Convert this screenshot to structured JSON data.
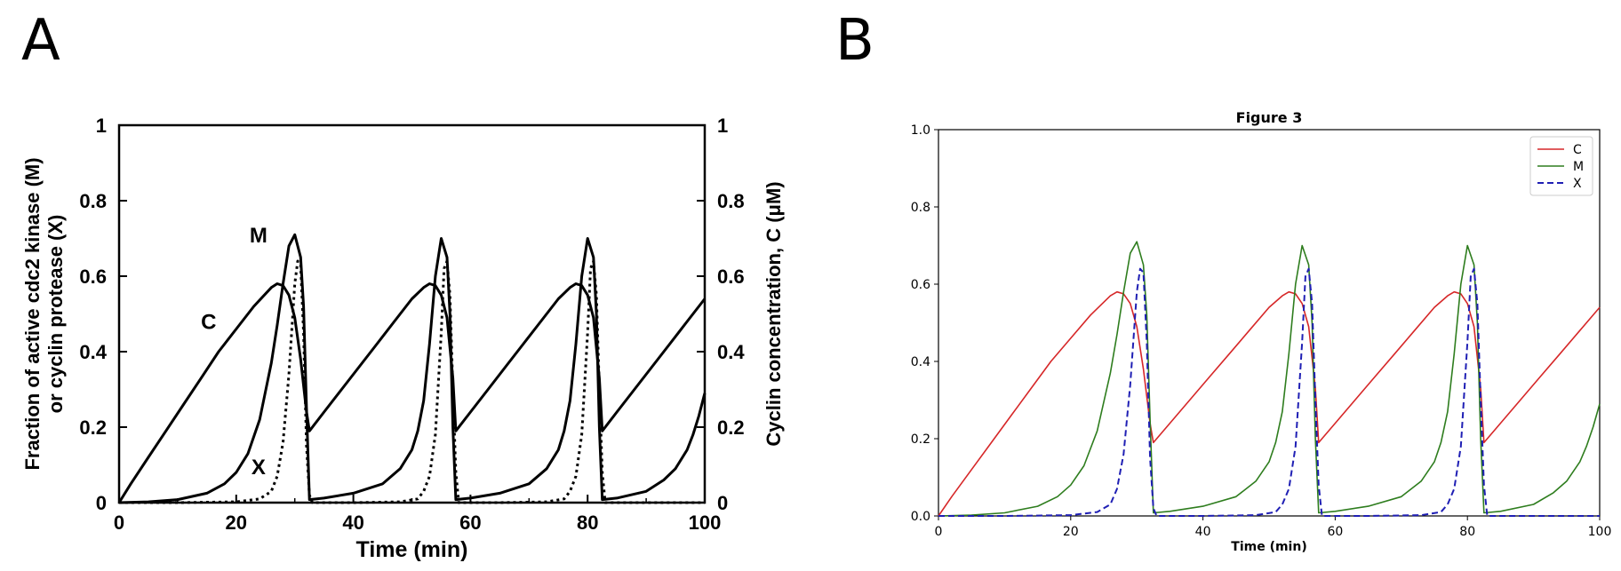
{
  "panels": {
    "a_letter": "A",
    "b_letter": "B"
  },
  "chart_data": [
    {
      "panel": "A",
      "type": "line",
      "title": "",
      "xlabel": "Time  (min)",
      "ylabel_left_line1": "Fraction of active cdc2 kinase (M)",
      "ylabel_left_line2": "or cyclin protease (X)",
      "ylabel_right": "Cyclin  concentration,  C (μM)",
      "xlim": [
        0,
        100
      ],
      "ylim": [
        0,
        1
      ],
      "xticks": [
        "0",
        "20",
        "40",
        "60",
        "80",
        "100"
      ],
      "yticks": [
        "0",
        "0.2",
        "0.4",
        "0.6",
        "0.8",
        "1"
      ],
      "grid": false,
      "legend": "none",
      "annotations": [
        {
          "text": "M",
          "x": 23.8,
          "y": 0.69
        },
        {
          "text": "C",
          "x": 15.3,
          "y": 0.46
        },
        {
          "text": "X",
          "x": 23.8,
          "y": 0.075
        }
      ],
      "series": [
        {
          "label": "C",
          "style": "solid",
          "color": "#000000",
          "x": [
            0,
            2,
            5,
            8,
            11,
            14,
            17,
            20,
            23,
            26,
            27,
            28,
            29,
            30,
            31,
            32,
            32.5,
            35,
            38,
            41,
            44,
            47,
            50,
            52,
            53,
            54,
            55,
            56,
            57,
            57.5,
            60,
            63,
            66,
            69,
            72,
            75,
            77,
            78,
            79,
            80,
            81,
            82,
            82.5,
            85,
            88,
            91,
            94,
            97,
            100
          ],
          "y": [
            0,
            0.05,
            0.12,
            0.19,
            0.26,
            0.33,
            0.4,
            0.46,
            0.52,
            0.57,
            0.58,
            0.575,
            0.55,
            0.49,
            0.38,
            0.24,
            0.19,
            0.24,
            0.3,
            0.36,
            0.42,
            0.48,
            0.54,
            0.57,
            0.58,
            0.575,
            0.55,
            0.49,
            0.33,
            0.19,
            0.24,
            0.3,
            0.36,
            0.42,
            0.48,
            0.54,
            0.57,
            0.58,
            0.575,
            0.55,
            0.49,
            0.33,
            0.19,
            0.24,
            0.3,
            0.36,
            0.42,
            0.48,
            0.54
          ]
        },
        {
          "label": "M",
          "style": "solid",
          "color": "#000000",
          "x": [
            0,
            5,
            10,
            15,
            18,
            20,
            22,
            24,
            26,
            27,
            28,
            29,
            30,
            31,
            31.5,
            32,
            32.5,
            35,
            40,
            45,
            48,
            50,
            51,
            52,
            53,
            54,
            55,
            56,
            56.5,
            57,
            57.5,
            60,
            65,
            70,
            73,
            75,
            76,
            77,
            78,
            79,
            80,
            81,
            81.5,
            82,
            82.5,
            85,
            90,
            93,
            95,
            97,
            98,
            99,
            100
          ],
          "y": [
            0,
            0.002,
            0.008,
            0.025,
            0.05,
            0.08,
            0.13,
            0.22,
            0.37,
            0.47,
            0.58,
            0.68,
            0.71,
            0.65,
            0.52,
            0.25,
            0.008,
            0.012,
            0.025,
            0.05,
            0.09,
            0.14,
            0.19,
            0.27,
            0.42,
            0.6,
            0.7,
            0.65,
            0.5,
            0.2,
            0.008,
            0.012,
            0.025,
            0.05,
            0.09,
            0.14,
            0.19,
            0.27,
            0.42,
            0.6,
            0.7,
            0.65,
            0.5,
            0.2,
            0.008,
            0.012,
            0.03,
            0.06,
            0.09,
            0.14,
            0.18,
            0.23,
            0.29
          ]
        },
        {
          "label": "X",
          "style": "dotted",
          "color": "#000000",
          "x": [
            0,
            10,
            20,
            24,
            26,
            27,
            28,
            29,
            30,
            30.5,
            31,
            31.5,
            32,
            32.5,
            33,
            40,
            48,
            51,
            52,
            53,
            54,
            55,
            55.5,
            56,
            56.5,
            57,
            57.5,
            58,
            65,
            73,
            76,
            77,
            78,
            79,
            80,
            80.5,
            81,
            81.5,
            82,
            82.5,
            83,
            90,
            100
          ],
          "y": [
            0,
            0,
            0.002,
            0.01,
            0.03,
            0.07,
            0.16,
            0.34,
            0.58,
            0.64,
            0.63,
            0.45,
            0.15,
            0.02,
            0,
            0,
            0.002,
            0.01,
            0.03,
            0.07,
            0.18,
            0.45,
            0.62,
            0.64,
            0.55,
            0.3,
            0.08,
            0,
            0,
            0.002,
            0.01,
            0.03,
            0.07,
            0.18,
            0.45,
            0.62,
            0.64,
            0.55,
            0.3,
            0.08,
            0,
            0,
            0
          ]
        }
      ]
    },
    {
      "panel": "B",
      "type": "line",
      "title": "Figure 3",
      "xlabel": "Time (min)",
      "ylabel": "",
      "xlim": [
        0,
        100
      ],
      "ylim": [
        0,
        1.0
      ],
      "xticks": [
        "0",
        "20",
        "40",
        "60",
        "80",
        "100"
      ],
      "yticks": [
        "0.0",
        "0.2",
        "0.4",
        "0.6",
        "0.8",
        "1.0"
      ],
      "grid": false,
      "legend": "top-right",
      "series": [
        {
          "name": "C",
          "style": "solid",
          "color": "#d62728",
          "x": [
            0,
            2,
            5,
            8,
            11,
            14,
            17,
            20,
            23,
            26,
            27,
            28,
            29,
            30,
            31,
            32,
            32.5,
            35,
            38,
            41,
            44,
            47,
            50,
            52,
            53,
            54,
            55,
            56,
            57,
            57.5,
            60,
            63,
            66,
            69,
            72,
            75,
            77,
            78,
            79,
            80,
            81,
            82,
            82.5,
            85,
            88,
            91,
            94,
            97,
            100
          ],
          "y": [
            0,
            0.05,
            0.12,
            0.19,
            0.26,
            0.33,
            0.4,
            0.46,
            0.52,
            0.57,
            0.58,
            0.575,
            0.55,
            0.49,
            0.38,
            0.24,
            0.19,
            0.24,
            0.3,
            0.36,
            0.42,
            0.48,
            0.54,
            0.57,
            0.58,
            0.575,
            0.55,
            0.49,
            0.33,
            0.19,
            0.24,
            0.3,
            0.36,
            0.42,
            0.48,
            0.54,
            0.57,
            0.58,
            0.575,
            0.55,
            0.49,
            0.33,
            0.19,
            0.24,
            0.3,
            0.36,
            0.42,
            0.48,
            0.54
          ]
        },
        {
          "name": "M",
          "style": "solid",
          "color": "#2e7d1e",
          "x": [
            0,
            5,
            10,
            15,
            18,
            20,
            22,
            24,
            26,
            27,
            28,
            29,
            30,
            31,
            31.5,
            32,
            32.5,
            35,
            40,
            45,
            48,
            50,
            51,
            52,
            53,
            54,
            55,
            56,
            56.5,
            57,
            57.5,
            60,
            65,
            70,
            73,
            75,
            76,
            77,
            78,
            79,
            80,
            81,
            81.5,
            82,
            82.5,
            85,
            90,
            93,
            95,
            97,
            98,
            99,
            100
          ],
          "y": [
            0,
            0.002,
            0.008,
            0.025,
            0.05,
            0.08,
            0.13,
            0.22,
            0.37,
            0.47,
            0.58,
            0.68,
            0.71,
            0.65,
            0.52,
            0.25,
            0.008,
            0.012,
            0.025,
            0.05,
            0.09,
            0.14,
            0.19,
            0.27,
            0.42,
            0.6,
            0.7,
            0.65,
            0.5,
            0.2,
            0.008,
            0.012,
            0.025,
            0.05,
            0.09,
            0.14,
            0.19,
            0.27,
            0.42,
            0.6,
            0.7,
            0.65,
            0.5,
            0.2,
            0.008,
            0.012,
            0.03,
            0.06,
            0.09,
            0.14,
            0.18,
            0.23,
            0.29
          ]
        },
        {
          "name": "X",
          "style": "dashed",
          "color": "#1f1fb4",
          "x": [
            0,
            10,
            20,
            24,
            26,
            27,
            28,
            29,
            30,
            30.5,
            31,
            31.5,
            32,
            32.5,
            33,
            40,
            48,
            51,
            52,
            53,
            54,
            55,
            55.5,
            56,
            56.5,
            57,
            57.5,
            58,
            65,
            73,
            76,
            77,
            78,
            79,
            80,
            80.5,
            81,
            81.5,
            82,
            82.5,
            83,
            90,
            100
          ],
          "y": [
            0,
            0,
            0.002,
            0.01,
            0.03,
            0.07,
            0.16,
            0.34,
            0.58,
            0.64,
            0.63,
            0.45,
            0.15,
            0.02,
            0,
            0,
            0.002,
            0.01,
            0.03,
            0.07,
            0.18,
            0.45,
            0.62,
            0.64,
            0.55,
            0.3,
            0.08,
            0,
            0,
            0.002,
            0.01,
            0.03,
            0.07,
            0.18,
            0.45,
            0.62,
            0.64,
            0.55,
            0.3,
            0.08,
            0,
            0,
            0
          ]
        }
      ]
    }
  ]
}
